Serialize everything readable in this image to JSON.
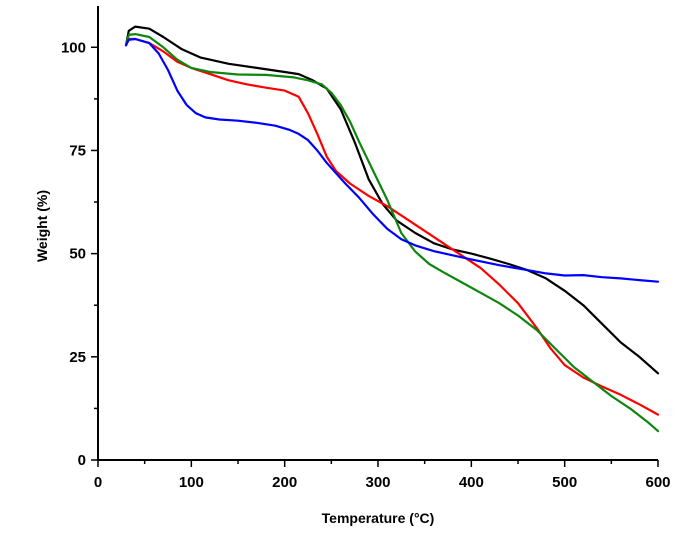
{
  "chart_data": {
    "type": "line",
    "title": "",
    "xlabel": "Temperature (°C)",
    "ylabel": "Weight  (%)",
    "xlim": [
      0,
      600
    ],
    "ylim": [
      0,
      110
    ],
    "x_ticks": [
      0,
      100,
      200,
      300,
      400,
      500,
      600
    ],
    "y_ticks": [
      0,
      25,
      50,
      75,
      100
    ],
    "x_tick_labels": [
      "0",
      "100",
      "200",
      "300",
      "400",
      "500",
      "600"
    ],
    "y_tick_labels": [
      "0",
      "25",
      "50",
      "75",
      "100"
    ],
    "grid": false,
    "series": [
      {
        "name": "black",
        "color": "#000000",
        "points": [
          [
            30,
            100.5
          ],
          [
            33,
            104
          ],
          [
            40,
            105
          ],
          [
            55,
            104.5
          ],
          [
            70,
            102.5
          ],
          [
            90,
            99.5
          ],
          [
            110,
            97.5
          ],
          [
            140,
            96
          ],
          [
            170,
            95
          ],
          [
            200,
            94
          ],
          [
            215,
            93.5
          ],
          [
            230,
            92
          ],
          [
            245,
            90
          ],
          [
            260,
            85
          ],
          [
            275,
            77
          ],
          [
            290,
            68
          ],
          [
            305,
            62
          ],
          [
            320,
            58
          ],
          [
            340,
            55
          ],
          [
            360,
            52.5
          ],
          [
            380,
            51
          ],
          [
            400,
            50
          ],
          [
            420,
            48.8
          ],
          [
            440,
            47.5
          ],
          [
            460,
            46
          ],
          [
            480,
            44
          ],
          [
            500,
            41
          ],
          [
            520,
            37.5
          ],
          [
            540,
            33
          ],
          [
            560,
            28.5
          ],
          [
            580,
            25
          ],
          [
            600,
            21
          ]
        ]
      },
      {
        "name": "red",
        "color": "#ff0000",
        "points": [
          [
            30,
            100.5
          ],
          [
            33,
            102
          ],
          [
            40,
            102
          ],
          [
            55,
            101
          ],
          [
            70,
            99
          ],
          [
            85,
            96.5
          ],
          [
            100,
            95
          ],
          [
            120,
            93.5
          ],
          [
            140,
            92
          ],
          [
            160,
            91
          ],
          [
            180,
            90.2
          ],
          [
            200,
            89.5
          ],
          [
            215,
            88
          ],
          [
            225,
            84
          ],
          [
            235,
            79
          ],
          [
            245,
            73.5
          ],
          [
            255,
            70
          ],
          [
            270,
            67
          ],
          [
            290,
            64
          ],
          [
            310,
            61.5
          ],
          [
            330,
            58.5
          ],
          [
            350,
            55.5
          ],
          [
            370,
            52.5
          ],
          [
            390,
            49.5
          ],
          [
            410,
            46.5
          ],
          [
            430,
            42.5
          ],
          [
            450,
            38
          ],
          [
            470,
            32
          ],
          [
            485,
            27
          ],
          [
            500,
            23
          ],
          [
            520,
            20
          ],
          [
            540,
            17.8
          ],
          [
            560,
            15.8
          ],
          [
            580,
            13.5
          ],
          [
            600,
            11
          ]
        ]
      },
      {
        "name": "green",
        "color": "#0d860d",
        "points": [
          [
            30,
            100.5
          ],
          [
            33,
            103
          ],
          [
            40,
            103.2
          ],
          [
            55,
            102.5
          ],
          [
            70,
            100
          ],
          [
            85,
            97
          ],
          [
            100,
            95
          ],
          [
            120,
            94
          ],
          [
            150,
            93.4
          ],
          [
            180,
            93.3
          ],
          [
            210,
            92.7
          ],
          [
            225,
            92
          ],
          [
            240,
            91
          ],
          [
            250,
            89
          ],
          [
            260,
            86
          ],
          [
            270,
            82
          ],
          [
            280,
            77
          ],
          [
            295,
            70
          ],
          [
            310,
            63
          ],
          [
            325,
            55
          ],
          [
            340,
            50.5
          ],
          [
            355,
            47.5
          ],
          [
            370,
            45.5
          ],
          [
            390,
            43
          ],
          [
            410,
            40.5
          ],
          [
            430,
            38
          ],
          [
            450,
            35
          ],
          [
            470,
            31.5
          ],
          [
            490,
            27
          ],
          [
            510,
            22.5
          ],
          [
            530,
            19
          ],
          [
            550,
            15.5
          ],
          [
            570,
            12.5
          ],
          [
            590,
            9
          ],
          [
            600,
            7
          ]
        ]
      },
      {
        "name": "blue",
        "color": "#0000ff",
        "points": [
          [
            30,
            100.5
          ],
          [
            33,
            101.8
          ],
          [
            40,
            102
          ],
          [
            55,
            101
          ],
          [
            65,
            98.5
          ],
          [
            75,
            94.5
          ],
          [
            85,
            89.5
          ],
          [
            95,
            86
          ],
          [
            105,
            84
          ],
          [
            115,
            83
          ],
          [
            130,
            82.5
          ],
          [
            150,
            82.2
          ],
          [
            170,
            81.7
          ],
          [
            190,
            81
          ],
          [
            205,
            80
          ],
          [
            215,
            79
          ],
          [
            225,
            77.5
          ],
          [
            235,
            75
          ],
          [
            245,
            72
          ],
          [
            255,
            69.5
          ],
          [
            265,
            67
          ],
          [
            280,
            63.5
          ],
          [
            295,
            59.5
          ],
          [
            310,
            56
          ],
          [
            325,
            53.5
          ],
          [
            340,
            52
          ],
          [
            360,
            50.6
          ],
          [
            380,
            49.6
          ],
          [
            400,
            48.6
          ],
          [
            430,
            47.2
          ],
          [
            460,
            46
          ],
          [
            480,
            45.2
          ],
          [
            500,
            44.7
          ],
          [
            520,
            44.8
          ],
          [
            540,
            44.3
          ],
          [
            560,
            44
          ],
          [
            580,
            43.6
          ],
          [
            600,
            43.2
          ]
        ]
      }
    ]
  }
}
